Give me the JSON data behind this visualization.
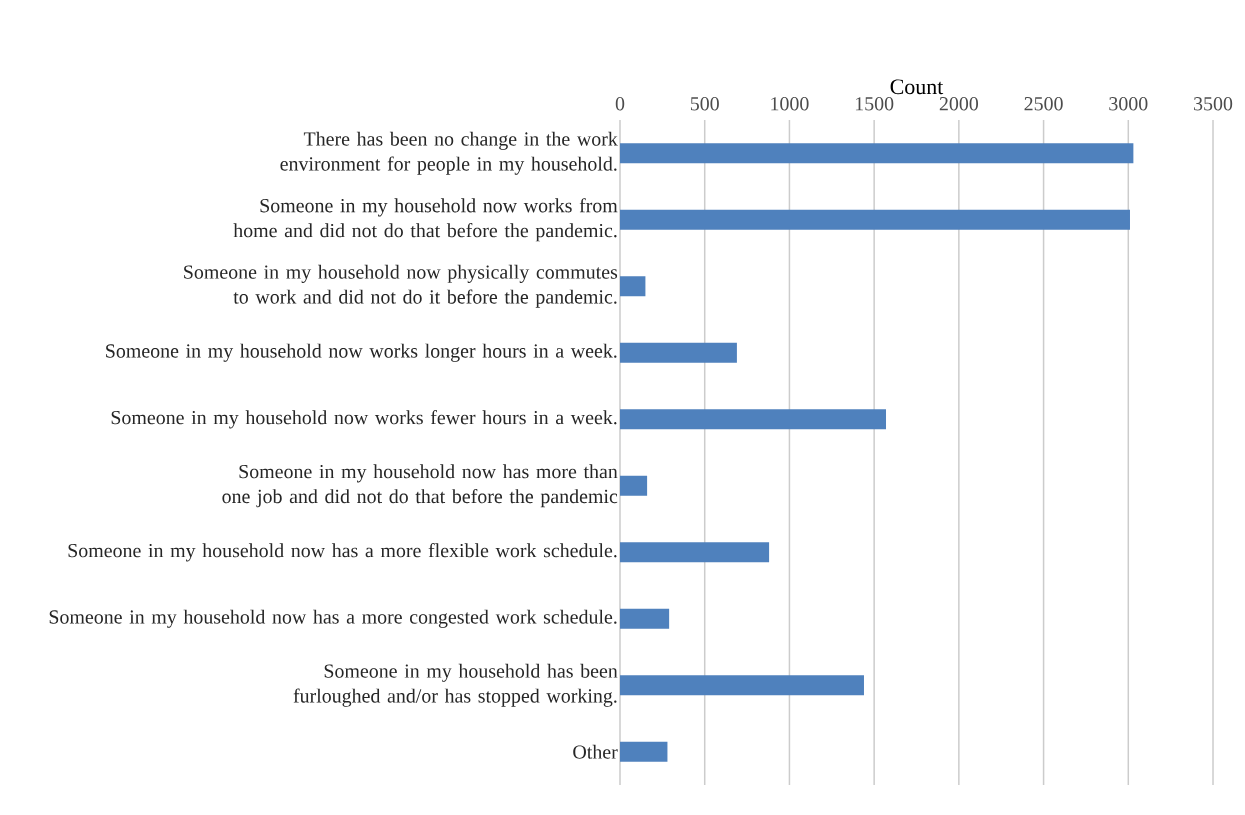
{
  "chart_data": {
    "type": "bar",
    "orientation": "horizontal",
    "xlabel": "Count",
    "categories": [
      "There has been no change in the work environment for people in my household.",
      "Someone in my household now works from home and did not do that before the pandemic.",
      "Someone in my household now physically commutes to work and did not do it before the pandemic.",
      "Someone in my household now works longer hours in a week.",
      "Someone in my household now works fewer hours in a week.",
      "Someone in my household now has more than one job and did not do that before the pandemic",
      "Someone in my household now has a more flexible work schedule.",
      "Someone in my household now has a more congested work schedule.",
      "Someone in my household has been furloughed and/or has stopped working.",
      "Other"
    ],
    "values": [
      3030,
      3010,
      150,
      690,
      1570,
      160,
      880,
      290,
      1440,
      280
    ],
    "color": "#4f81bd",
    "xlim": [
      0,
      3500
    ],
    "xticks": [
      0,
      500,
      1000,
      1500,
      2000,
      2500,
      3000,
      3500
    ],
    "grid": "x"
  }
}
